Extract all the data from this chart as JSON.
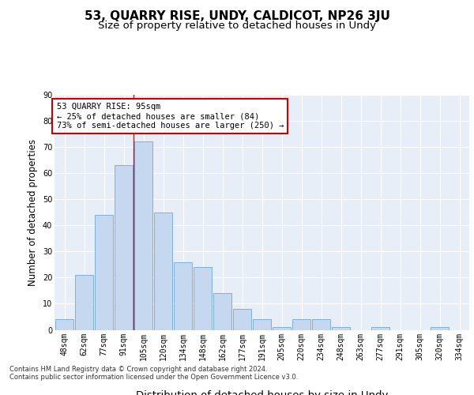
{
  "title": "53, QUARRY RISE, UNDY, CALDICOT, NP26 3JU",
  "subtitle": "Size of property relative to detached houses in Undy",
  "xlabel": "Distribution of detached houses by size in Undy",
  "ylabel": "Number of detached properties",
  "categories": [
    "48sqm",
    "62sqm",
    "77sqm",
    "91sqm",
    "105sqm",
    "120sqm",
    "134sqm",
    "148sqm",
    "162sqm",
    "177sqm",
    "191sqm",
    "205sqm",
    "220sqm",
    "234sqm",
    "248sqm",
    "263sqm",
    "277sqm",
    "291sqm",
    "305sqm",
    "320sqm",
    "334sqm"
  ],
  "values": [
    4,
    21,
    44,
    63,
    72,
    45,
    26,
    24,
    14,
    8,
    4,
    1,
    4,
    4,
    1,
    0,
    1,
    0,
    0,
    1,
    0
  ],
  "bar_color": "#c5d8f0",
  "bar_edge_color": "#6fa8d8",
  "background_color": "#e8eef8",
  "grid_color": "#ffffff",
  "red_line_x": 3.5,
  "annotation_text": "53 QUARRY RISE: 95sqm\n← 25% of detached houses are smaller (84)\n73% of semi-detached houses are larger (250) →",
  "annotation_box_color": "#ffffff",
  "annotation_box_edge_color": "#cc0000",
  "ylim": [
    0,
    90
  ],
  "yticks": [
    0,
    10,
    20,
    30,
    40,
    50,
    60,
    70,
    80,
    90
  ],
  "footer": "Contains HM Land Registry data © Crown copyright and database right 2024.\nContains public sector information licensed under the Open Government Licence v3.0.",
  "title_fontsize": 11,
  "subtitle_fontsize": 9.5,
  "ylabel_fontsize": 8.5,
  "xlabel_fontsize": 9.5,
  "tick_fontsize": 7,
  "annotation_fontsize": 7.5,
  "footer_fontsize": 6
}
